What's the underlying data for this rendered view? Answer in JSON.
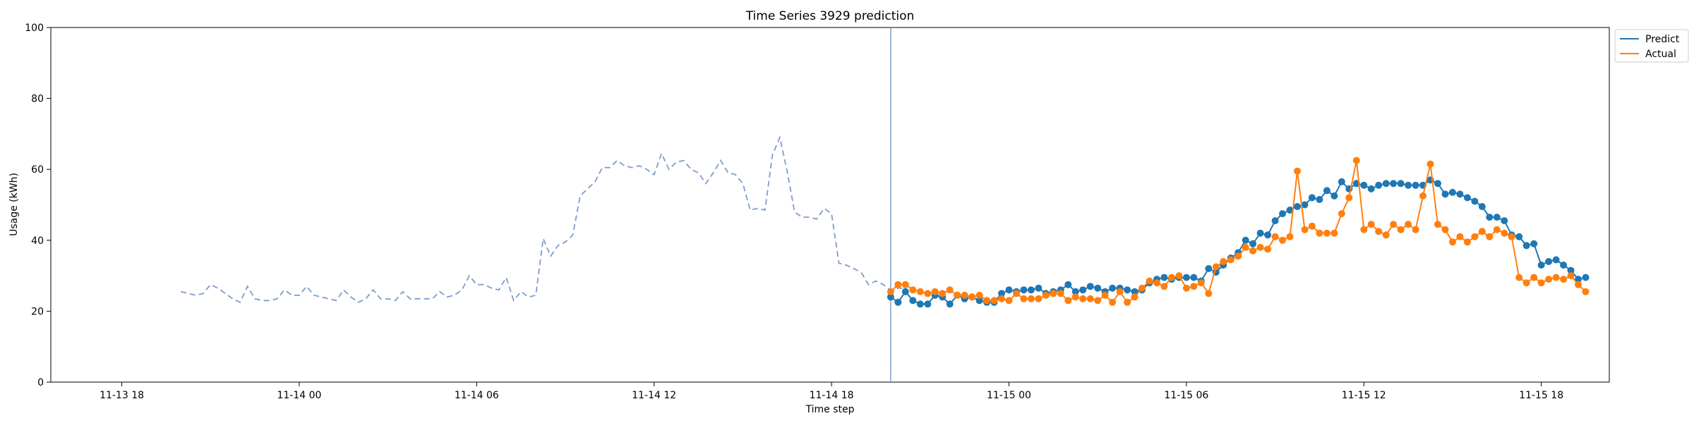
{
  "chart_data": {
    "type": "line",
    "title": "Time Series 3929 prediction",
    "xlabel": "Time step",
    "ylabel": "Usage (kWh)",
    "ylim": [
      0,
      100
    ],
    "xlim_hours": [
      -2.4,
      50.3
    ],
    "y_ticks": [
      0,
      20,
      40,
      60,
      80,
      100
    ],
    "x_ticks": [
      {
        "label": "11-13 18",
        "hour": 0
      },
      {
        "label": "11-14 00",
        "hour": 6
      },
      {
        "label": "11-14 06",
        "hour": 12
      },
      {
        "label": "11-14 12",
        "hour": 18
      },
      {
        "label": "11-14 18",
        "hour": 24
      },
      {
        "label": "11-15 00",
        "hour": 30
      },
      {
        "label": "11-15 06",
        "hour": 36
      },
      {
        "label": "11-15 12",
        "hour": 42
      },
      {
        "label": "11-15 18",
        "hour": 48
      }
    ],
    "time_start": "11-13 20:00",
    "time_step_minutes": 15,
    "vertical_line_time": "11-14 20:00",
    "legend": {
      "position": "top-right",
      "entries": [
        "Predict",
        "Actual"
      ]
    },
    "grid": false,
    "colors": {
      "history": "#7f9ccb",
      "predict": "#1f77b4",
      "actual": "#ff7f0e",
      "vline": "#7f9ccb"
    },
    "history": {
      "values": [
        25.5,
        25,
        24.5,
        25,
        27.5,
        26.5,
        25,
        23.5,
        22.5,
        27,
        23.5,
        23,
        23,
        23.5,
        26,
        24.5,
        24.5,
        27,
        24.5,
        24,
        23.5,
        23,
        26,
        24,
        22.5,
        23.5,
        26,
        23.5,
        23.5,
        23,
        25.5,
        23.5,
        23.5,
        23.5,
        23.5,
        25.5,
        24,
        24.5,
        26,
        30,
        27.5,
        27.5,
        26.5,
        26,
        29.5,
        23,
        25.5,
        24,
        24.5,
        40.5,
        35.5,
        38.5,
        39.5,
        41.5,
        52.5,
        54.5,
        56.5,
        60.5,
        60.5,
        62.5,
        61,
        60.5,
        61,
        60,
        58.5,
        64.5,
        60,
        62,
        62.5,
        60,
        59,
        56,
        59,
        62.5,
        59,
        58.5,
        56,
        48.5,
        49,
        48.5,
        64,
        69,
        59.5,
        48,
        46.5,
        46.5,
        46,
        49,
        47.5,
        33.5,
        33,
        32,
        31,
        27.5,
        28.5,
        27.5,
        26,
        26.5,
        26.5
      ]
    },
    "series": [
      {
        "name": "Predict",
        "values": [
          24,
          22.5,
          25.5,
          23,
          22,
          22,
          24.5,
          24,
          22,
          24.5,
          23.5,
          24,
          23,
          22.5,
          22.5,
          25,
          26,
          25.5,
          26,
          26,
          26.5,
          25,
          25.5,
          26,
          27.5,
          25.5,
          26,
          27,
          26.5,
          25.5,
          26.5,
          26.5,
          26,
          25.5,
          26,
          28,
          29,
          29.5,
          29,
          29.5,
          29.5,
          29.5,
          28.5,
          32,
          31,
          33,
          35,
          36.5,
          40,
          39,
          42,
          41.5,
          45.5,
          47.5,
          48.5,
          49.5,
          50,
          52,
          51.5,
          54,
          52.5,
          56.5,
          54.5,
          56,
          55.5,
          54.5,
          55.5,
          56,
          56,
          56,
          55.5,
          55.5,
          55.5,
          57,
          56,
          53,
          53.5,
          53,
          52,
          51,
          49.5,
          46.5,
          46.5,
          45.5,
          41.5,
          41,
          38.5,
          39,
          33,
          34,
          34.5,
          33,
          31.5,
          29,
          29.5
        ]
      },
      {
        "name": "Actual",
        "values": [
          25.5,
          27.5,
          27.5,
          26,
          25.5,
          25,
          25.5,
          25,
          26,
          24.5,
          24.5,
          24,
          24.5,
          23,
          23,
          23.5,
          23,
          25,
          23.5,
          23.5,
          23.5,
          24.5,
          25,
          25,
          23,
          24,
          23.5,
          23.5,
          23,
          24.5,
          22.5,
          25.5,
          22.5,
          24,
          26.5,
          28.5,
          28,
          27,
          29.5,
          30,
          26.5,
          27,
          28,
          25,
          32.5,
          34,
          34.5,
          35.5,
          38,
          37,
          38,
          37.5,
          41,
          40,
          41,
          59.5,
          43,
          44,
          42,
          42,
          42,
          47.5,
          52,
          62.5,
          43,
          44.5,
          42.5,
          41.5,
          44.5,
          43,
          44.5,
          43,
          52.5,
          61.5,
          44.5,
          43,
          39.5,
          41,
          39.5,
          41,
          42.5,
          41,
          43,
          42,
          41,
          29.5,
          28,
          29.5,
          28,
          29,
          29.5,
          29,
          30,
          27.5,
          25.5
        ]
      }
    ]
  }
}
